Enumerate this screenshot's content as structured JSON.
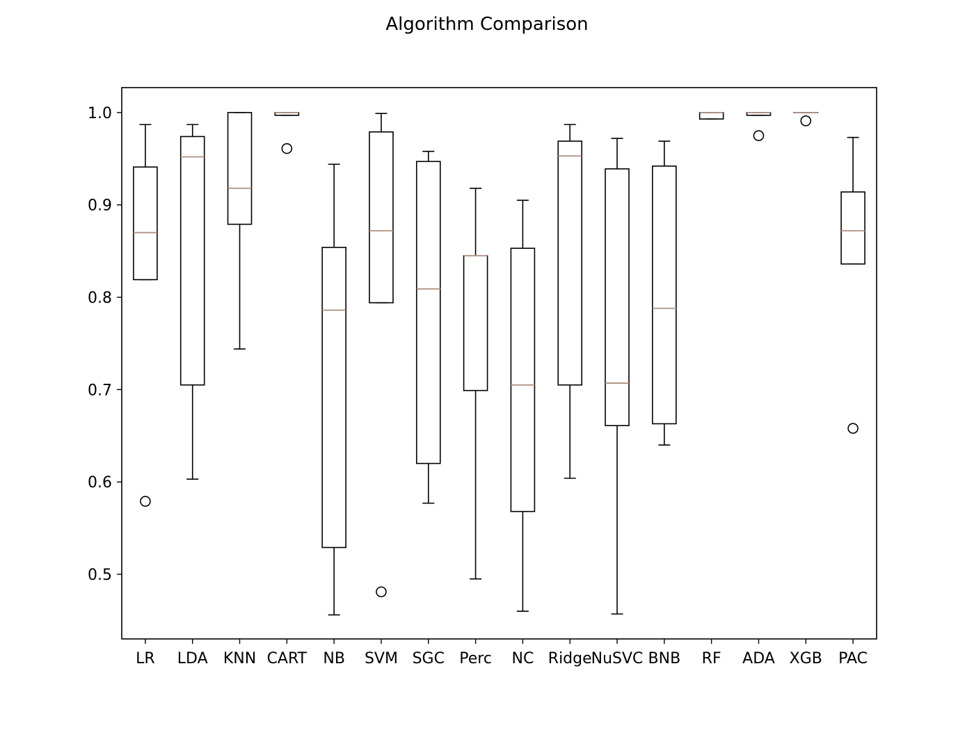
{
  "chart_data": {
    "type": "boxplot",
    "title": "Algorithm Comparison",
    "xlabel": "",
    "ylabel": "",
    "categories": [
      "LR",
      "LDA",
      "KNN",
      "CART",
      "NB",
      "SVM",
      "SGC",
      "Perc",
      "NC",
      "Ridge",
      "NuSVC",
      "BNB",
      "RF",
      "ADA",
      "XGB",
      "PAC"
    ],
    "ylim": [
      0.43,
      1.027
    ],
    "yticks": [
      0.5,
      0.6,
      0.7,
      0.8,
      0.9,
      1.0
    ],
    "ytick_labels": [
      "0.5",
      "0.6",
      "0.7",
      "0.8",
      "0.9",
      "1.0"
    ],
    "grid": false,
    "box_color": "#000000",
    "median_color": "#b09080",
    "boxes": [
      {
        "name": "LR",
        "whisker_low": 0.819,
        "q1": 0.819,
        "median": 0.87,
        "q3": 0.941,
        "whisker_high": 0.987,
        "outliers": [
          0.579
        ]
      },
      {
        "name": "LDA",
        "whisker_low": 0.603,
        "q1": 0.705,
        "median": 0.952,
        "q3": 0.974,
        "whisker_high": 0.987,
        "outliers": []
      },
      {
        "name": "KNN",
        "whisker_low": 0.744,
        "q1": 0.879,
        "median": 0.918,
        "q3": 1.0,
        "whisker_high": 1.0,
        "outliers": []
      },
      {
        "name": "CART",
        "whisker_low": 0.997,
        "q1": 0.997,
        "median": 1.0,
        "q3": 1.0,
        "whisker_high": 1.0,
        "outliers": [
          0.961
        ]
      },
      {
        "name": "NB",
        "whisker_low": 0.456,
        "q1": 0.529,
        "median": 0.786,
        "q3": 0.854,
        "whisker_high": 0.944,
        "outliers": []
      },
      {
        "name": "SVM",
        "whisker_low": 0.794,
        "q1": 0.794,
        "median": 0.872,
        "q3": 0.979,
        "whisker_high": 0.999,
        "outliers": [
          0.481
        ]
      },
      {
        "name": "SGC",
        "whisker_low": 0.577,
        "q1": 0.62,
        "median": 0.809,
        "q3": 0.947,
        "whisker_high": 0.958,
        "outliers": []
      },
      {
        "name": "Perc",
        "whisker_low": 0.495,
        "q1": 0.699,
        "median": 0.845,
        "q3": 0.845,
        "whisker_high": 0.918,
        "outliers": []
      },
      {
        "name": "NC",
        "whisker_low": 0.46,
        "q1": 0.568,
        "median": 0.705,
        "q3": 0.853,
        "whisker_high": 0.905,
        "outliers": []
      },
      {
        "name": "Ridge",
        "whisker_low": 0.604,
        "q1": 0.705,
        "median": 0.953,
        "q3": 0.969,
        "whisker_high": 0.987,
        "outliers": []
      },
      {
        "name": "NuSVC",
        "whisker_low": 0.457,
        "q1": 0.661,
        "median": 0.707,
        "q3": 0.939,
        "whisker_high": 0.972,
        "outliers": []
      },
      {
        "name": "BNB",
        "whisker_low": 0.64,
        "q1": 0.663,
        "median": 0.788,
        "q3": 0.942,
        "whisker_high": 0.969,
        "outliers": []
      },
      {
        "name": "RF",
        "whisker_low": 0.993,
        "q1": 0.993,
        "median": 1.0,
        "q3": 1.0,
        "whisker_high": 1.0,
        "outliers": []
      },
      {
        "name": "ADA",
        "whisker_low": 0.997,
        "q1": 0.997,
        "median": 1.0,
        "q3": 1.0,
        "whisker_high": 1.0,
        "outliers": [
          0.975
        ]
      },
      {
        "name": "XGB",
        "whisker_low": 1.0,
        "q1": 1.0,
        "median": 1.0,
        "q3": 1.0,
        "whisker_high": 1.0,
        "outliers": [
          0.991
        ]
      },
      {
        "name": "PAC",
        "whisker_low": 0.836,
        "q1": 0.836,
        "median": 0.872,
        "q3": 0.914,
        "whisker_high": 0.973,
        "outliers": [
          0.658
        ]
      }
    ]
  }
}
